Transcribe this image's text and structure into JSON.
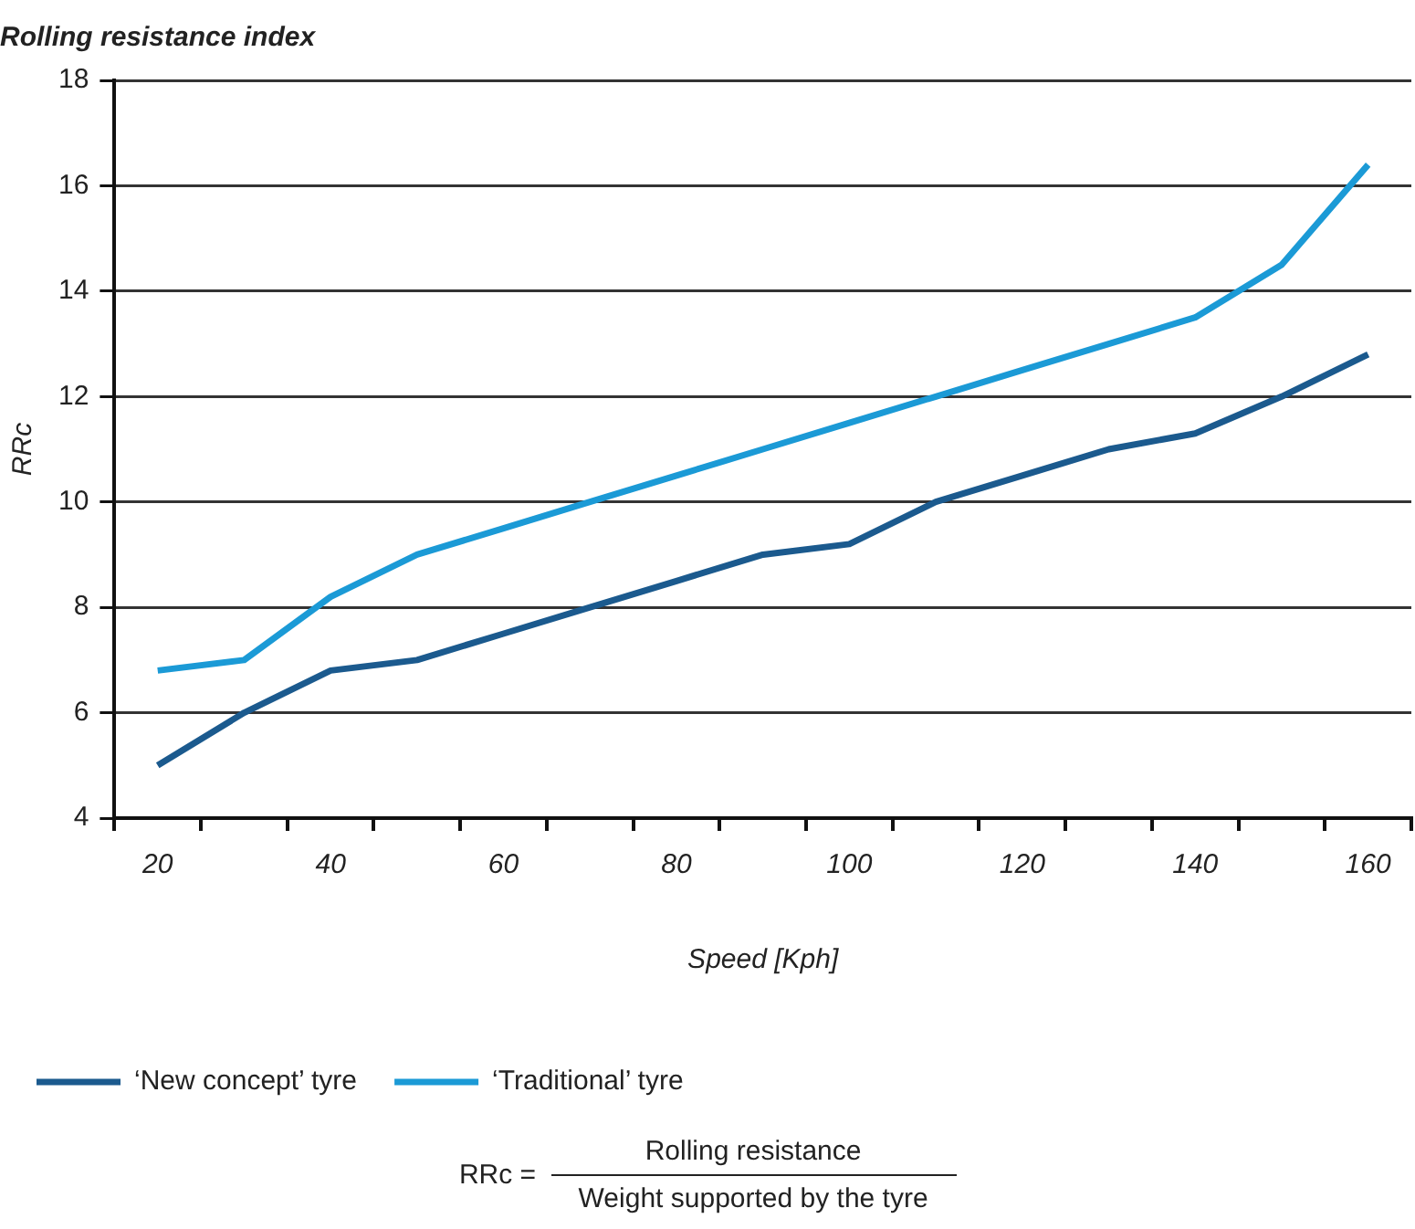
{
  "chart_data": {
    "type": "line",
    "title": "Rolling resistance index",
    "xlabel": "Speed [Kph]",
    "ylabel": "RRc",
    "categories": [
      "20",
      null,
      "40",
      null,
      "60",
      null,
      "80",
      null,
      "100",
      null,
      "120",
      null,
      "140",
      null,
      "160"
    ],
    "series": [
      {
        "name": "‘New concept’ tyre",
        "color": "#1b5a8e",
        "values": [
          5.0,
          6.0,
          6.8,
          7.0,
          7.5,
          8.0,
          8.5,
          9.0,
          9.2,
          10.0,
          10.5,
          11.0,
          11.3,
          12.0,
          12.8
        ]
      },
      {
        "name": "‘Traditional’ tyre",
        "color": "#1b9ad6",
        "values": [
          6.8,
          7.0,
          8.2,
          9.0,
          9.5,
          10.0,
          10.5,
          11.0,
          11.5,
          12.0,
          12.5,
          13.0,
          13.5,
          14.5,
          16.4
        ]
      }
    ],
    "ylim": [
      4,
      18
    ],
    "yticks": [
      4,
      6,
      8,
      10,
      12,
      14,
      16,
      18
    ],
    "grid": "y",
    "legend": "bottom left",
    "marker": "none",
    "line_style": "solid",
    "annotations": [
      "RRc =",
      "Rolling resistance",
      "Weight supported by the tyre"
    ]
  }
}
